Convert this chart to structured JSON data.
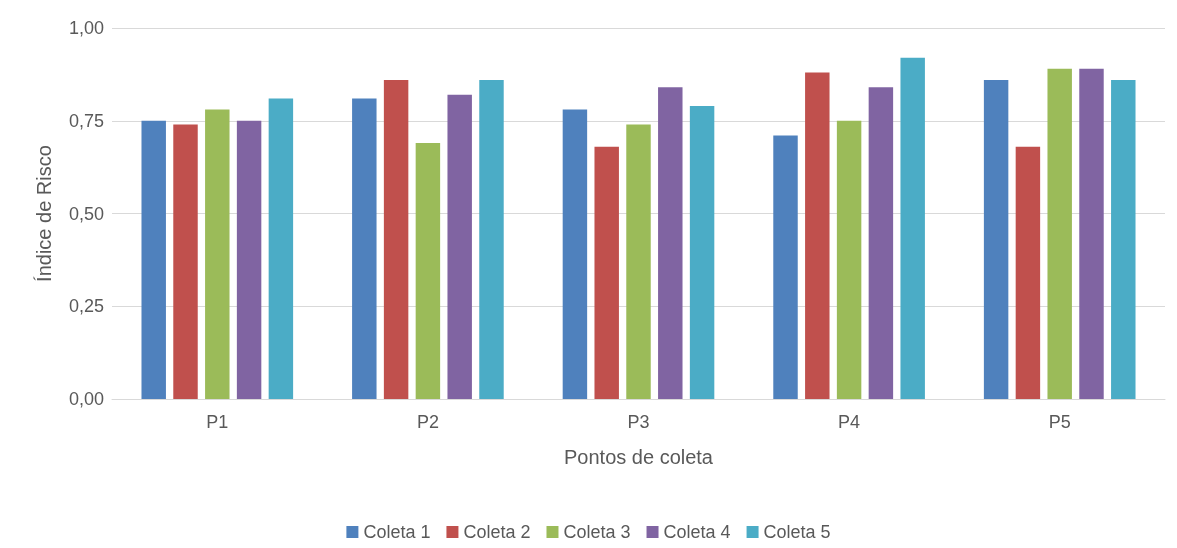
{
  "chart_data": {
    "type": "bar",
    "xlabel": "Pontos de coleta",
    "ylabel": "Índice de Risco",
    "categories": [
      "P1",
      "P2",
      "P3",
      "P4",
      "P5"
    ],
    "series": [
      {
        "name": "Coleta 1",
        "color": "#4f81bd",
        "values": [
          0.75,
          0.81,
          0.78,
          0.71,
          0.86
        ]
      },
      {
        "name": "Coleta 2",
        "color": "#c0504d",
        "values": [
          0.74,
          0.86,
          0.68,
          0.88,
          0.68
        ]
      },
      {
        "name": "Coleta 3",
        "color": "#9bbb59",
        "values": [
          0.78,
          0.69,
          0.74,
          0.75,
          0.89
        ]
      },
      {
        "name": "Coleta 4",
        "color": "#8064a2",
        "values": [
          0.75,
          0.82,
          0.84,
          0.84,
          0.89
        ]
      },
      {
        "name": "Coleta 5",
        "color": "#4bacc6",
        "values": [
          0.81,
          0.86,
          0.79,
          0.92,
          0.86
        ]
      }
    ],
    "ylim": [
      0,
      1
    ],
    "yticks": [
      {
        "value": 0,
        "label": "0,00"
      },
      {
        "value": 0.25,
        "label": "0,25"
      },
      {
        "value": 0.5,
        "label": "0,50"
      },
      {
        "value": 0.75,
        "label": "0,75"
      },
      {
        "value": 1,
        "label": "1,00"
      }
    ],
    "grid": "y",
    "legend": "bottom"
  }
}
